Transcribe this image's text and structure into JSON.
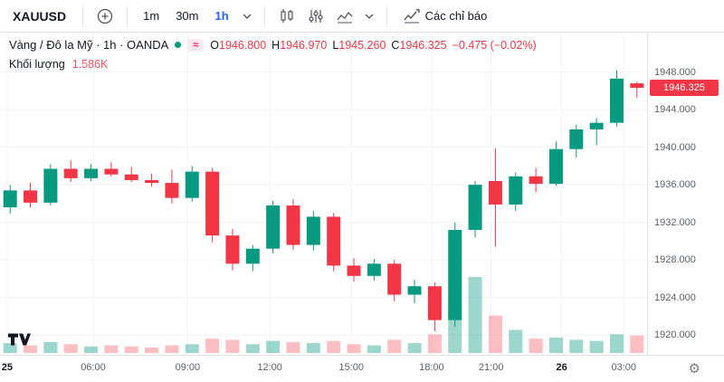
{
  "toolbar": {
    "symbol": "XAUUSD",
    "intervals": [
      {
        "label": "1m",
        "active": false
      },
      {
        "label": "30m",
        "active": false
      },
      {
        "label": "1h",
        "active": true
      }
    ],
    "indicators_label": "Các chỉ báo"
  },
  "icons": {
    "add": "plus-circle",
    "interval_chevron": "chevron-down",
    "chart_style": "candlesticks",
    "settings_sliders": "sliders",
    "line_style": "area-line",
    "style_chevron": "chevron-down",
    "indicators": "chart-line-up",
    "gear": "⚙",
    "logo": "tradingview"
  },
  "legend": {
    "title": "Vàng / Đô la Mỹ · 1h · OANDA",
    "ohlc": {
      "o_label": "O",
      "o": "1946.800",
      "h_label": "H",
      "h": "1946.970",
      "l_label": "L",
      "l": "1945.260",
      "c_label": "C",
      "c": "1946.325",
      "change": "−0.475 (−0.02%)"
    },
    "volume_label": "Khối lượng",
    "volume_value": "1.586K"
  },
  "price_axis": {
    "ticks": [
      1948,
      1944,
      1940,
      1936,
      1932,
      1928,
      1924,
      1920
    ],
    "labels": [
      "1948.000",
      "1944.000",
      "1940.000",
      "1936.000",
      "1932.000",
      "1928.000",
      "1924.000",
      "1920.000"
    ],
    "badge": "1946.325",
    "badge_price": 1946.325
  },
  "time_axis": {
    "ticks": [
      {
        "label": "25",
        "x": 0.011,
        "major": true
      },
      {
        "label": "06:00",
        "x": 0.144
      },
      {
        "label": "09:00",
        "x": 0.29
      },
      {
        "label": "12:00",
        "x": 0.417
      },
      {
        "label": "15:00",
        "x": 0.543
      },
      {
        "label": "18:00",
        "x": 0.667
      },
      {
        "label": "21:00",
        "x": 0.759
      },
      {
        "label": "26",
        "x": 0.868,
        "major": true
      },
      {
        "label": "03:00",
        "x": 0.964
      }
    ]
  },
  "chart_data": {
    "type": "candlestick+volume",
    "symbol": "XAUUSD",
    "market": "OANDA",
    "interval": "1h",
    "price_range": [
      1917.9,
      1952.2
    ],
    "volume_max_k": 6.9,
    "colors": {
      "up": "#089981",
      "down": "#f23645",
      "vol_up": "rgba(8,153,129,0.40)",
      "vol_down": "rgba(242,54,69,0.32)",
      "grid": "#f0f3fa"
    },
    "candles": [
      {
        "o": 1933.6,
        "h": 1936.0,
        "l": 1932.9,
        "c": 1935.4,
        "v": 0.9
      },
      {
        "o": 1935.4,
        "h": 1936.2,
        "l": 1933.6,
        "c": 1934.1,
        "v": 0.7
      },
      {
        "o": 1934.1,
        "h": 1938.2,
        "l": 1933.8,
        "c": 1937.7,
        "v": 1.0
      },
      {
        "o": 1937.7,
        "h": 1938.6,
        "l": 1936.3,
        "c": 1936.7,
        "v": 0.8
      },
      {
        "o": 1936.7,
        "h": 1938.2,
        "l": 1936.4,
        "c": 1937.7,
        "v": 0.6
      },
      {
        "o": 1937.7,
        "h": 1938.4,
        "l": 1936.9,
        "c": 1937.1,
        "v": 0.7
      },
      {
        "o": 1937.1,
        "h": 1937.9,
        "l": 1936.3,
        "c": 1936.5,
        "v": 0.6
      },
      {
        "o": 1936.5,
        "h": 1937.2,
        "l": 1935.8,
        "c": 1936.2,
        "v": 0.5
      },
      {
        "o": 1936.2,
        "h": 1937.6,
        "l": 1934.0,
        "c": 1934.6,
        "v": 0.7
      },
      {
        "o": 1934.6,
        "h": 1938.0,
        "l": 1934.2,
        "c": 1937.4,
        "v": 0.8
      },
      {
        "o": 1937.4,
        "h": 1937.8,
        "l": 1929.9,
        "c": 1930.6,
        "v": 1.3
      },
      {
        "o": 1930.6,
        "h": 1931.3,
        "l": 1926.9,
        "c": 1927.6,
        "v": 1.2
      },
      {
        "o": 1927.6,
        "h": 1929.6,
        "l": 1926.8,
        "c": 1929.2,
        "v": 0.8
      },
      {
        "o": 1929.2,
        "h": 1934.3,
        "l": 1928.7,
        "c": 1933.8,
        "v": 1.1
      },
      {
        "o": 1933.8,
        "h": 1934.5,
        "l": 1929.1,
        "c": 1929.6,
        "v": 1.0
      },
      {
        "o": 1929.6,
        "h": 1933.2,
        "l": 1929.0,
        "c": 1932.6,
        "v": 0.9
      },
      {
        "o": 1932.6,
        "h": 1933.0,
        "l": 1926.8,
        "c": 1927.4,
        "v": 1.1
      },
      {
        "o": 1927.4,
        "h": 1928.2,
        "l": 1925.7,
        "c": 1926.3,
        "v": 0.8
      },
      {
        "o": 1926.3,
        "h": 1928.1,
        "l": 1925.8,
        "c": 1927.6,
        "v": 0.7
      },
      {
        "o": 1927.6,
        "h": 1928.0,
        "l": 1923.6,
        "c": 1924.3,
        "v": 1.2
      },
      {
        "o": 1924.3,
        "h": 1925.9,
        "l": 1923.4,
        "c": 1925.2,
        "v": 0.9
      },
      {
        "o": 1925.2,
        "h": 1925.6,
        "l": 1920.4,
        "c": 1921.6,
        "v": 1.7
      },
      {
        "o": 1921.6,
        "h": 1932.0,
        "l": 1920.9,
        "c": 1931.2,
        "v": 4.6
      },
      {
        "o": 1931.2,
        "h": 1936.4,
        "l": 1930.4,
        "c": 1936.0,
        "v": 6.9
      },
      {
        "o": 1936.4,
        "h": 1939.9,
        "l": 1929.4,
        "c": 1933.9,
        "v": 3.4
      },
      {
        "o": 1933.9,
        "h": 1937.3,
        "l": 1933.2,
        "c": 1936.9,
        "v": 2.1
      },
      {
        "o": 1936.9,
        "h": 1937.8,
        "l": 1935.2,
        "c": 1936.1,
        "v": 1.3
      },
      {
        "o": 1936.1,
        "h": 1940.6,
        "l": 1935.9,
        "c": 1939.8,
        "v": 1.4
      },
      {
        "o": 1939.8,
        "h": 1942.4,
        "l": 1938.9,
        "c": 1941.9,
        "v": 1.2
      },
      {
        "o": 1941.9,
        "h": 1943.1,
        "l": 1940.2,
        "c": 1942.6,
        "v": 1.1
      },
      {
        "o": 1942.6,
        "h": 1948.2,
        "l": 1942.2,
        "c": 1947.3,
        "v": 1.7
      },
      {
        "o": 1946.8,
        "h": 1946.97,
        "l": 1945.26,
        "c": 1946.325,
        "v": 1.586
      }
    ]
  }
}
